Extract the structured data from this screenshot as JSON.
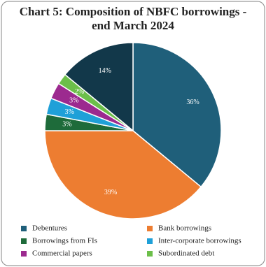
{
  "chart_data": {
    "type": "pie",
    "title": [
      "Chart 5: Composition of NBFC borrowings -",
      "end March 2024"
    ],
    "categories": [
      "Debentures",
      "Bank borrowings",
      "Borrowings from FIs",
      "Inter-corporate borrowings",
      "Commercial papers",
      "Subordinated debt",
      null
    ],
    "values": [
      36,
      39,
      3,
      3,
      3,
      2,
      14
    ],
    "value_labels": [
      "36%",
      "39%",
      "3%",
      "3%",
      "3%",
      "2%",
      "14%"
    ],
    "colors": [
      "#1f5f7a",
      "#ed7d31",
      "#1e6b3a",
      "#1fa0d8",
      "#9c2a8f",
      "#6cbf4a",
      "#12384a"
    ]
  }
}
